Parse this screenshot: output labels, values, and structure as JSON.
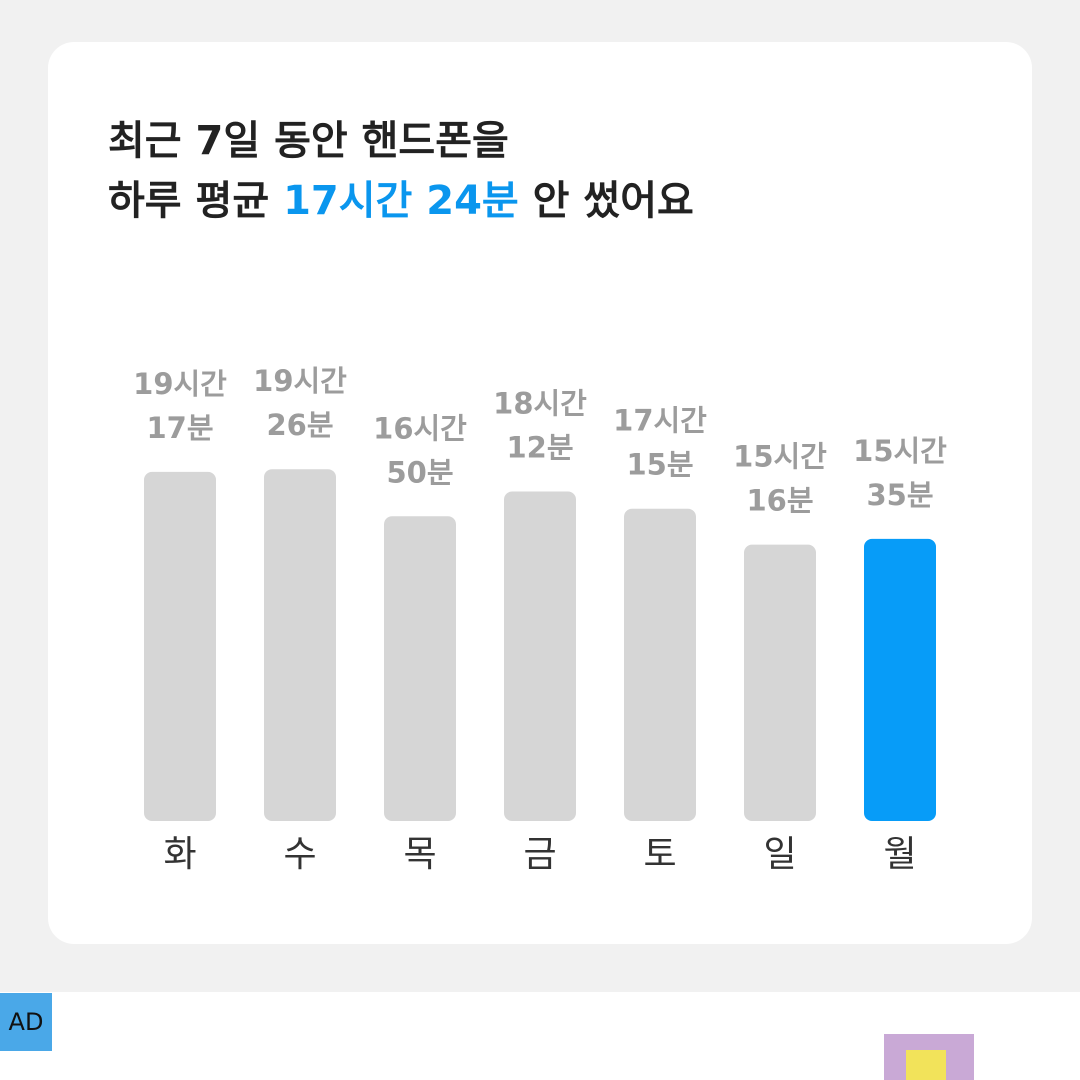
{
  "chart_data": {
    "type": "bar",
    "title_line1": "최근 7일 동안 핸드폰을",
    "title_line2_prefix": "하루 평균",
    "title_line2_highlight": "17시간 24분",
    "title_line2_suffix": "안 썼어요",
    "highlight_color": "#0a96ee",
    "categories": [
      "화",
      "수",
      "목",
      "금",
      "토",
      "일",
      "월"
    ],
    "values": [
      1157,
      1166,
      1010,
      1092,
      1035,
      916,
      935
    ],
    "value_labels": [
      "19시간 17분",
      "19시간 26분",
      "16시간 50분",
      "18시간 12분",
      "17시간 15분",
      "15시간 16분",
      "15시간 35분"
    ],
    "colors": [
      "#d6d6d6",
      "#d6d6d6",
      "#d6d6d6",
      "#d6d6d6",
      "#d6d6d6",
      "#d6d6d6",
      "#079cf8"
    ]
  },
  "ad_badge": "AD"
}
